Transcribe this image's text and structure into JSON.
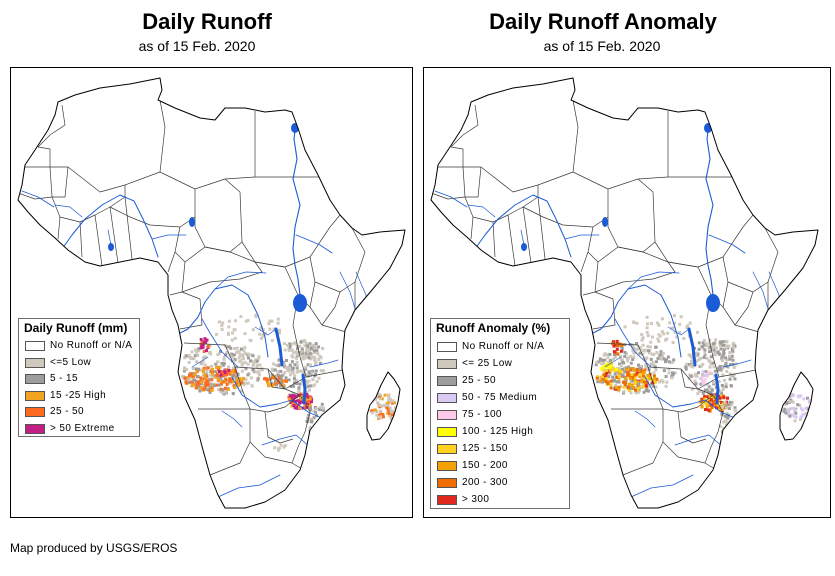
{
  "panels": [
    {
      "title": "Daily Runoff",
      "subtitle": "as of 15 Feb. 2020",
      "legend": {
        "title": "Daily Runoff (mm)",
        "items": [
          {
            "label": "No Runoff or N/A",
            "color": "#ffffff"
          },
          {
            "label": "<=5 Low",
            "color": "#cfc8bd"
          },
          {
            "label": "5 - 15",
            "color": "#9d9d9d"
          },
          {
            "label": "15 -25 High",
            "color": "#f2a31f"
          },
          {
            "label": "25 - 50",
            "color": "#ff6b1e"
          },
          {
            "label": "> 50 Extreme",
            "color": "#c21f86"
          }
        ]
      }
    },
    {
      "title": "Daily Runoff Anomaly",
      "subtitle": "as of 15 Feb. 2020",
      "legend": {
        "title": "Runoff Anomaly (%)",
        "items": [
          {
            "label": "No Runoff or N/A",
            "color": "#ffffff"
          },
          {
            "label": "<= 25 Low",
            "color": "#cfc8bd"
          },
          {
            "label": "25 - 50",
            "color": "#9d9d9d"
          },
          {
            "label": "50 - 75 Medium",
            "color": "#dac9f3"
          },
          {
            "label": "75 - 100",
            "color": "#ffc9e8"
          },
          {
            "label": "100 - 125 High",
            "color": "#ffff00"
          },
          {
            "label": "125 - 150",
            "color": "#ffd21f"
          },
          {
            "label": "150 - 200",
            "color": "#f2a100"
          },
          {
            "label": "200 - 300",
            "color": "#f06b00"
          },
          {
            "label": "> 300",
            "color": "#e0281d"
          }
        ]
      }
    }
  ],
  "credit": "Map produced by USGS/EROS",
  "map_colors": {
    "land": "#ffffff",
    "coast": "#000000",
    "border": "#3a3a3a",
    "water": "#1b5bd6"
  }
}
